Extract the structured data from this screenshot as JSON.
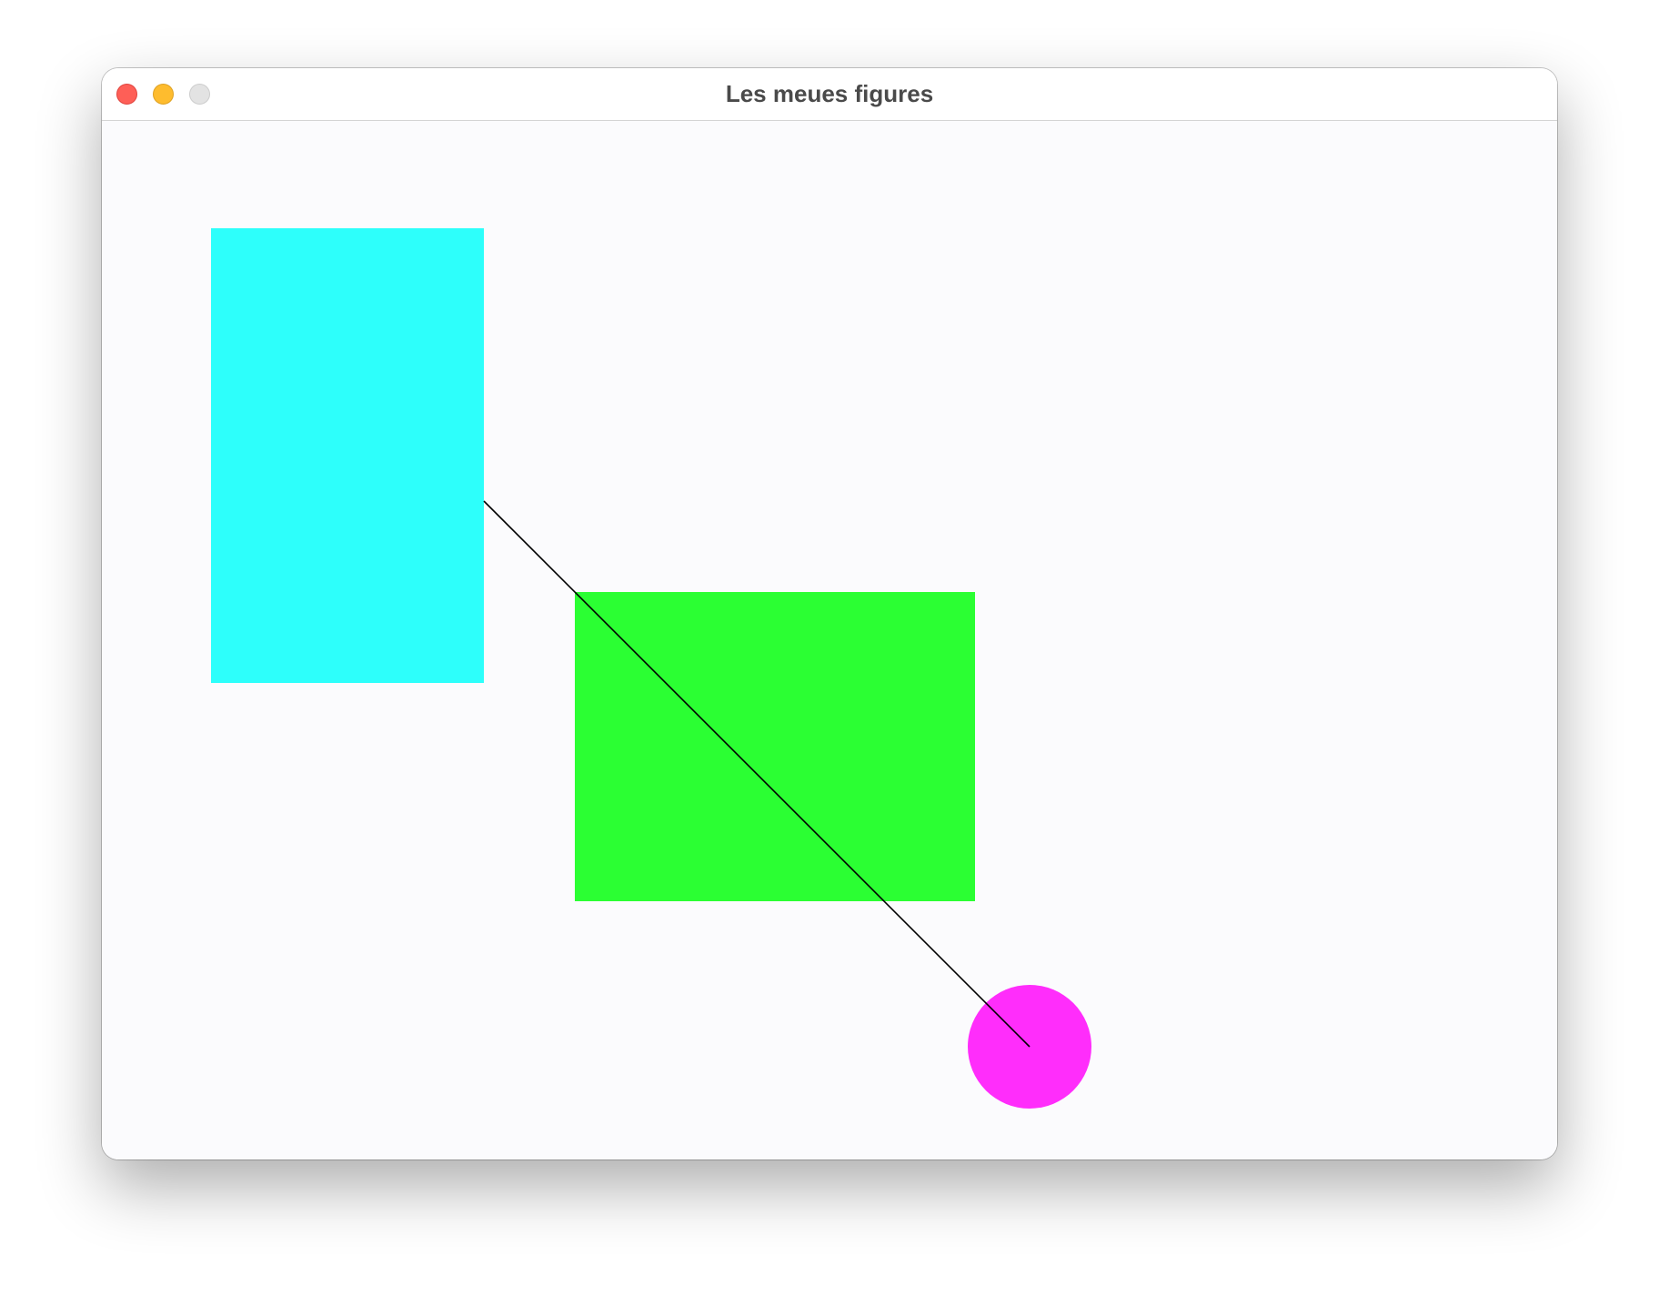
{
  "window": {
    "title": "Les meues figures",
    "controls": {
      "close": {
        "color": "#fe5f57",
        "icon": "close-icon"
      },
      "minimize": {
        "color": "#febc2e",
        "icon": "minimize-icon"
      },
      "zoom": {
        "color": "#e3e3e3",
        "icon": "zoom-icon"
      }
    }
  },
  "canvas": {
    "background": "#fbfbfd",
    "shapes": [
      {
        "name": "cyan-rectangle",
        "kind": "rectangle",
        "fill": "#2dfffb"
      },
      {
        "name": "green-rectangle",
        "kind": "rectangle",
        "fill": "#2bff33"
      },
      {
        "name": "magenta-circle",
        "kind": "circle",
        "fill": "#ff2dfb"
      },
      {
        "name": "connector-line",
        "kind": "line",
        "stroke": "#000000"
      }
    ]
  }
}
